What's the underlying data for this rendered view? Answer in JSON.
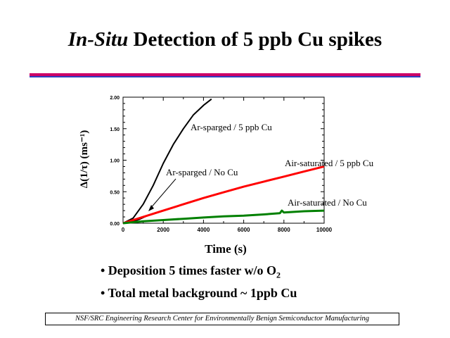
{
  "slide": {
    "title_italic": "In-Situ",
    "title_rest": " Detection of 5 ppb Cu spikes",
    "bullets": [
      {
        "prefix": "• Deposition 5 times faster w/o O",
        "sub": "2"
      },
      {
        "prefix": "• Total metal background ~ 1ppb Cu",
        "sub": ""
      }
    ],
    "footer": "NSF/SRC Engineering Research Center for Environmentally Benign Semiconductor Manufacturing"
  },
  "colors": {
    "title_rule": "#cc0066",
    "rule_shadow": "#2f3fbf",
    "series_black": "#000000",
    "series_red": "#ff0000",
    "series_green": "#008000"
  },
  "chart_data": {
    "type": "line",
    "xlabel": "Time (s)",
    "ylabel": "Δ(1/τ) (ms⁻¹)",
    "xlim": [
      0,
      10000
    ],
    "ylim": [
      0,
      2.0
    ],
    "x_ticks": [
      "0",
      "2000",
      "4000",
      "6000",
      "8000",
      "10000"
    ],
    "y_ticks": [
      "0.00",
      "0.50",
      "1.00",
      "1.50",
      "2.00"
    ],
    "grid": false,
    "series": [
      {
        "name": "Ar-sparged / 5 ppb Cu",
        "color": "#000000",
        "x": [
          0,
          500,
          1000,
          1500,
          2000,
          2500,
          3000,
          3500,
          4000,
          4400
        ],
        "y": [
          0.0,
          0.08,
          0.3,
          0.6,
          0.95,
          1.25,
          1.5,
          1.72,
          1.87,
          1.97
        ]
      },
      {
        "name": "Ar-sparged / No Cu",
        "color": "#000000",
        "x": [
          0,
          400,
          800,
          1200
        ],
        "y": [
          0.0,
          0.02,
          0.06,
          0.12
        ]
      },
      {
        "name": "Air-saturated / 5 ppb Cu",
        "color": "#ff0000",
        "x": [
          0,
          1000,
          2000,
          3000,
          4000,
          5000,
          6000,
          7000,
          8000,
          9000,
          10000
        ],
        "y": [
          0.0,
          0.1,
          0.2,
          0.3,
          0.4,
          0.49,
          0.58,
          0.66,
          0.74,
          0.82,
          0.9
        ]
      },
      {
        "name": "Air-saturated / No Cu",
        "color": "#008000",
        "x": [
          0,
          1000,
          2000,
          3000,
          4000,
          5000,
          6000,
          7000,
          7800,
          7900,
          8000,
          9000,
          10000
        ],
        "y": [
          0.0,
          0.03,
          0.05,
          0.07,
          0.09,
          0.11,
          0.12,
          0.14,
          0.16,
          0.2,
          0.17,
          0.19,
          0.2
        ]
      }
    ],
    "annotations": [
      {
        "text": "Ar-sparged / 5 ppb Cu"
      },
      {
        "text": "Ar-sparged / No Cu"
      },
      {
        "text": "Air-saturated / 5 ppb Cu"
      },
      {
        "text": "Air-saturated / No Cu"
      }
    ]
  }
}
